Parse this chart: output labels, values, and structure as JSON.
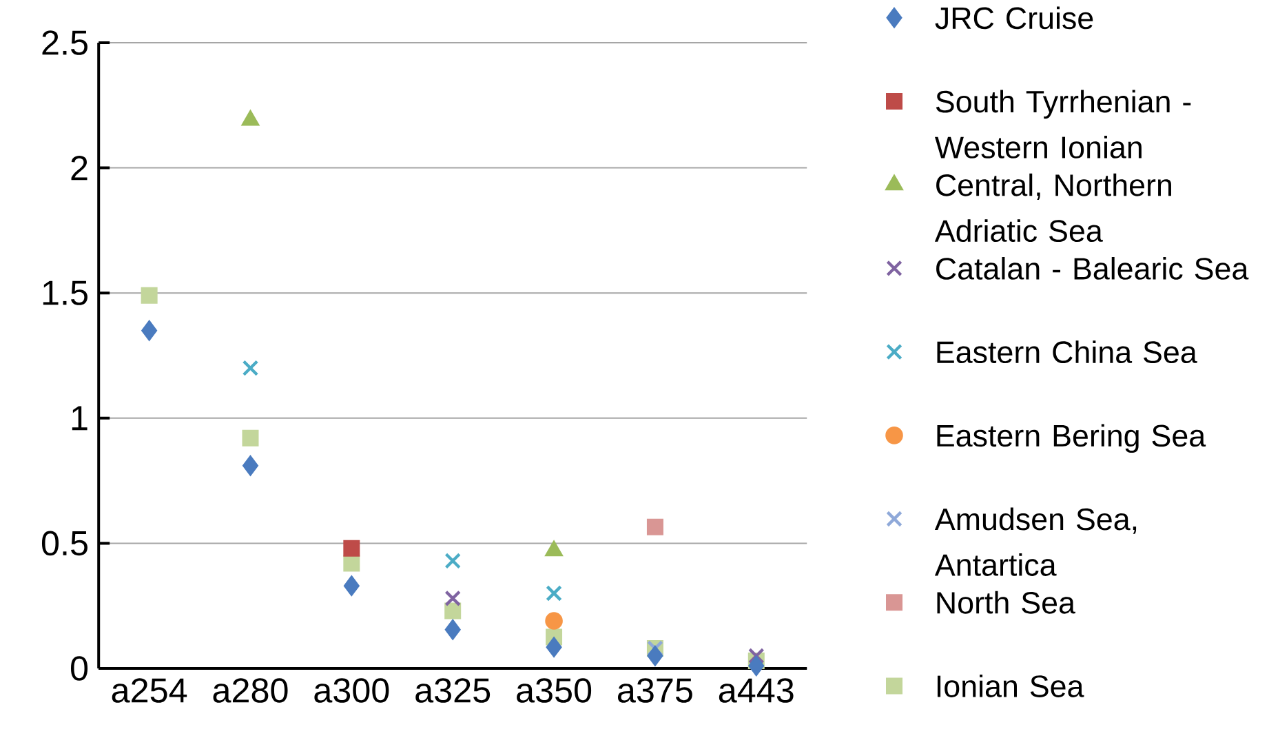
{
  "chart_data": {
    "type": "scatter",
    "categories": [
      "a254",
      "a280",
      "a300",
      "a325",
      "a350",
      "a375",
      "a443"
    ],
    "series": [
      {
        "name": "JRC Cruise",
        "color": "#4a7bbf",
        "marker": "diamond",
        "values": [
          1.35,
          0.81,
          0.33,
          0.155,
          0.085,
          0.05,
          0.01
        ]
      },
      {
        "name": "South Tyrrhenian - Western Ionian",
        "color": "#be4b48",
        "marker": "square",
        "values": [
          null,
          null,
          0.48,
          null,
          null,
          null,
          null
        ]
      },
      {
        "name": "Central, Northern Adriatic Sea",
        "color": "#9bbb59",
        "marker": "triangle",
        "values": [
          null,
          2.19,
          null,
          null,
          0.47,
          null,
          null
        ]
      },
      {
        "name": "Catalan - Balearic Sea",
        "color": "#7f63a1",
        "marker": "cross",
        "values": [
          null,
          null,
          null,
          0.28,
          null,
          null,
          0.05
        ]
      },
      {
        "name": "Eastern China Sea",
        "color": "#4bacc6",
        "marker": "cross",
        "values": [
          null,
          1.2,
          null,
          0.43,
          0.3,
          null,
          null
        ]
      },
      {
        "name": "Eastern Bering Sea",
        "color": "#f79646",
        "marker": "circle",
        "values": [
          null,
          null,
          null,
          null,
          0.19,
          null,
          null
        ]
      },
      {
        "name": "Amudsen Sea, Antartica",
        "color": "#8fa9d9",
        "marker": "cross",
        "values": [
          null,
          null,
          null,
          null,
          null,
          0.08,
          null
        ]
      },
      {
        "name": "North Sea",
        "color": "#d99694",
        "marker": "square",
        "values": [
          null,
          null,
          null,
          null,
          null,
          0.565,
          null
        ]
      },
      {
        "name": "Ionian Sea",
        "color": "#c3d69b",
        "marker": "square",
        "values": [
          1.49,
          0.92,
          0.42,
          0.23,
          0.125,
          0.08,
          0.03
        ]
      }
    ],
    "ylim": [
      0,
      2.5
    ],
    "yticks": [
      0,
      0.5,
      1,
      1.5,
      2,
      2.5
    ],
    "grid": "y",
    "legend": "right"
  }
}
